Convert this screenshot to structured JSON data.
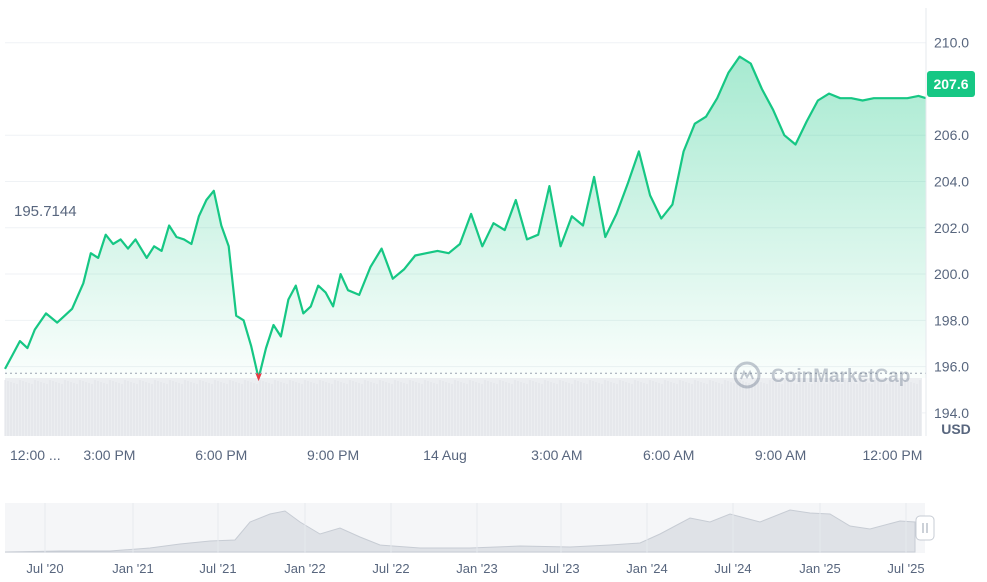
{
  "chart_data": {
    "type": "area",
    "currency_label": "USD",
    "reference_label": "195.7144",
    "reference_value": 195.7144,
    "current_price_label": "207.6",
    "current_price": 207.6,
    "watermark": "CoinMarketCap",
    "ylim": [
      193.0,
      211.5
    ],
    "y_ticks": [
      {
        "value": 194.0,
        "label": "194.0"
      },
      {
        "value": 196.0,
        "label": "196.0"
      },
      {
        "value": 198.0,
        "label": "198.0"
      },
      {
        "value": 200.0,
        "label": "200.0"
      },
      {
        "value": 202.0,
        "label": "202.0"
      },
      {
        "value": 204.0,
        "label": "204.0"
      },
      {
        "value": 206.0,
        "label": "206.0"
      },
      {
        "value": 210.0,
        "label": "210.0"
      }
    ],
    "x_ticks": [
      "12:00 ...",
      "3:00 PM",
      "6:00 PM",
      "9:00 PM",
      "14 Aug",
      "3:00 AM",
      "6:00 AM",
      "9:00 AM",
      "12:00 PM"
    ],
    "x_tick_hours": [
      12.4,
      15,
      18,
      21,
      24,
      27,
      30,
      33,
      36
    ],
    "xlim_hours": [
      12.2,
      36.9
    ],
    "navigator_labels": [
      "Jul '20",
      "Jan '21",
      "Jul '21",
      "Jan '22",
      "Jul '22",
      "Jan '23",
      "Jul '23",
      "Jan '24",
      "Jul '24",
      "Jan '25",
      "Jul '25"
    ],
    "series": [
      {
        "x": [
          12.2,
          12.4,
          12.6,
          12.8,
          13.0,
          13.3,
          13.6,
          13.8,
          14.0,
          14.3,
          14.5,
          14.7,
          14.9,
          15.1,
          15.3,
          15.5,
          15.7,
          16.0,
          16.2,
          16.4,
          16.6,
          16.8,
          17.0,
          17.2,
          17.4,
          17.6,
          17.8,
          18.0,
          18.2,
          18.4,
          18.6,
          18.8,
          19.0,
          19.2,
          19.4,
          19.6,
          19.8,
          20.0,
          20.2,
          20.4,
          20.6,
          20.8,
          21.0,
          21.2,
          21.4,
          21.7,
          22.0,
          22.3,
          22.6,
          22.9,
          23.2,
          23.5,
          23.8,
          24.1,
          24.4,
          24.7,
          25.0,
          25.3,
          25.6,
          25.9,
          26.2,
          26.5,
          26.8,
          27.1,
          27.4,
          27.7,
          28.0,
          28.3,
          28.6,
          28.9,
          29.2,
          29.5,
          29.8,
          30.1,
          30.4,
          30.7,
          31.0,
          31.3,
          31.6,
          31.9,
          32.2,
          32.5,
          32.8,
          33.1,
          33.4,
          33.7,
          34.0,
          34.3,
          34.6,
          34.9,
          35.2,
          35.5,
          35.8,
          36.1,
          36.4,
          36.7,
          36.9
        ],
        "values": [
          195.9,
          196.5,
          197.1,
          196.8,
          197.6,
          198.3,
          197.9,
          198.2,
          198.5,
          199.6,
          200.9,
          200.7,
          201.7,
          201.3,
          201.5,
          201.1,
          201.5,
          200.7,
          201.2,
          201.0,
          202.1,
          201.6,
          201.5,
          201.3,
          202.5,
          203.2,
          203.6,
          202.1,
          201.2,
          198.2,
          198.0,
          196.9,
          195.5,
          196.8,
          197.8,
          197.3,
          198.9,
          199.5,
          198.3,
          198.6,
          199.5,
          199.2,
          198.6,
          200.0,
          199.3,
          199.1,
          200.3,
          201.1,
          199.8,
          200.2,
          200.8,
          200.9,
          201.0,
          200.9,
          201.3,
          202.6,
          201.2,
          202.2,
          201.9,
          203.2,
          201.5,
          201.7,
          203.8,
          201.2,
          202.5,
          202.1,
          204.2,
          201.6,
          202.6,
          203.9,
          205.3,
          203.4,
          202.4,
          203.0,
          205.3,
          206.5,
          206.8,
          207.6,
          208.7,
          209.4,
          209.1,
          208.0,
          207.1,
          206.0,
          205.6,
          206.6,
          207.5,
          207.8,
          207.6,
          207.6,
          207.5,
          207.6,
          207.6,
          207.6,
          207.6,
          207.7,
          207.6
        ]
      }
    ]
  }
}
